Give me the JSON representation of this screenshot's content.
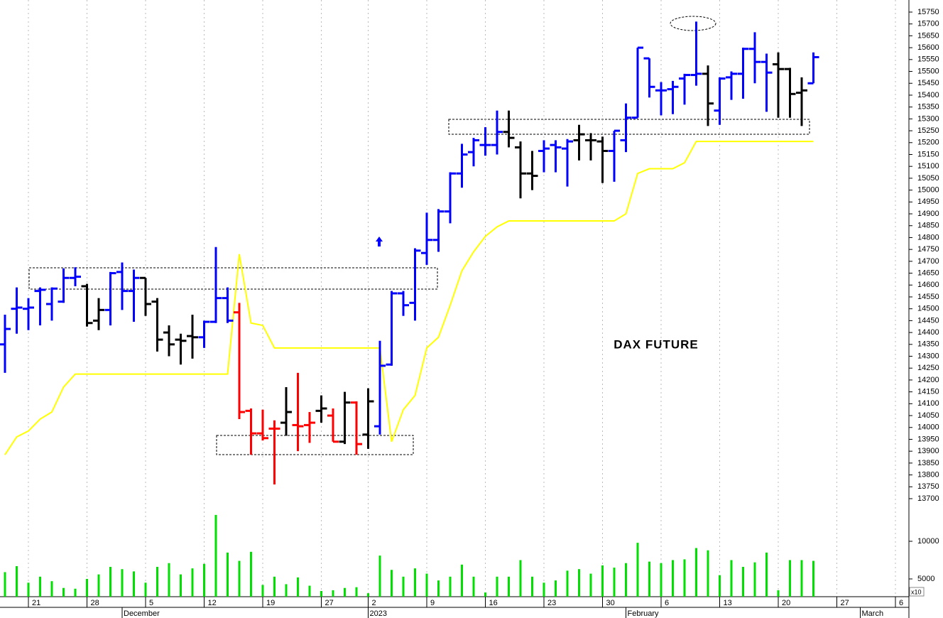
{
  "chart_data": {
    "type": "ohlc",
    "title": "DAX FUTURE",
    "categories": [
      null,
      null,
      "21",
      null,
      null,
      null,
      null,
      "28",
      null,
      null,
      null,
      null,
      "5",
      null,
      null,
      null,
      null,
      "12",
      null,
      null,
      null,
      null,
      "19",
      null,
      null,
      null,
      null,
      "27",
      null,
      null,
      null,
      "2",
      null,
      null,
      null,
      null,
      "9",
      null,
      null,
      null,
      null,
      "16",
      null,
      null,
      null,
      null,
      "23",
      null,
      null,
      null,
      null,
      "30",
      null,
      null,
      null,
      null,
      "6",
      null,
      null,
      null,
      null,
      "13",
      null,
      null,
      null,
      null,
      "20",
      null,
      null,
      null,
      null,
      "27",
      null,
      null,
      null,
      null,
      "6"
    ],
    "months": [
      null,
      null,
      null,
      null,
      null,
      null,
      null,
      null,
      null,
      null,
      "December",
      null,
      null,
      null,
      null,
      null,
      null,
      null,
      null,
      null,
      null,
      null,
      null,
      null,
      null,
      null,
      null,
      null,
      null,
      null,
      null,
      "2023",
      null,
      null,
      null,
      null,
      null,
      null,
      null,
      null,
      null,
      null,
      null,
      null,
      null,
      null,
      null,
      null,
      null,
      null,
      null,
      null,
      null,
      "February",
      null,
      null,
      null,
      null,
      null,
      null,
      null,
      null,
      null,
      null,
      null,
      null,
      null,
      null,
      null,
      null,
      null,
      null,
      null,
      "March",
      null,
      null,
      null
    ],
    "open": [
      14350,
      14500,
      14500,
      14575,
      14520,
      14530,
      14630,
      14595,
      14450,
      14495,
      14655,
      14575,
      14630,
      14530,
      14400,
      14370,
      14385,
      14380,
      14445,
      14545,
      14485,
      14070,
      13975,
      13995,
      14020,
      14010,
      14010,
      14070,
      14050,
      13940,
      14105,
      13970,
      14005,
      14265,
      14565,
      14525,
      14735,
      14790,
      14910,
      15070,
      15160,
      15190,
      15190,
      15245,
      15180,
      15070,
      15165,
      15190,
      15175,
      15210,
      15210,
      15205,
      15165,
      15210,
      15305,
      15555,
      15420,
      15425,
      15470,
      15485,
      15490,
      15335,
      15475,
      15490,
      15595,
      15540,
      15530,
      15510,
      15410,
      15450,
      null,
      null,
      null,
      null,
      null,
      null,
      null
    ],
    "high": [
      14475,
      14590,
      14545,
      14590,
      14590,
      14670,
      14675,
      14605,
      14545,
      14655,
      14695,
      14665,
      14630,
      14545,
      14430,
      14395,
      14475,
      14450,
      14760,
      14590,
      14525,
      14080,
      14075,
      14030,
      14170,
      14230,
      14065,
      14135,
      14080,
      14150,
      14110,
      14165,
      14365,
      14575,
      14575,
      14755,
      14905,
      14920,
      15075,
      15195,
      15220,
      15265,
      15335,
      15335,
      15205,
      15165,
      15210,
      15210,
      15215,
      15275,
      15240,
      15225,
      15250,
      15365,
      15600,
      15555,
      15455,
      15460,
      15490,
      15710,
      15525,
      15475,
      15500,
      15600,
      15665,
      15575,
      15580,
      15515,
      15475,
      15580,
      null,
      null,
      null,
      null,
      null,
      null,
      null
    ],
    "low": [
      14230,
      14395,
      14410,
      14430,
      14450,
      14525,
      14595,
      14425,
      14410,
      14430,
      14495,
      14445,
      14470,
      14320,
      14300,
      14265,
      14290,
      14335,
      14440,
      14440,
      14035,
      13885,
      13945,
      13760,
      13965,
      13900,
      13935,
      14020,
      13940,
      13930,
      13885,
      13910,
      13970,
      14260,
      14470,
      14450,
      14685,
      14740,
      14860,
      15010,
      15100,
      15145,
      15150,
      15180,
      14965,
      15000,
      15075,
      15075,
      15015,
      15125,
      15125,
      15030,
      15035,
      15160,
      15305,
      15390,
      15315,
      15320,
      15360,
      15440,
      15270,
      15275,
      15380,
      15385,
      15450,
      15330,
      15305,
      15305,
      15270,
      15450,
      null,
      null,
      null,
      null,
      null,
      null,
      null
    ],
    "close": [
      14415,
      14505,
      14505,
      14580,
      14585,
      14630,
      14635,
      14440,
      14495,
      14650,
      14575,
      14630,
      14520,
      14370,
      14350,
      14365,
      14380,
      14445,
      14545,
      14450,
      14065,
      13975,
      13955,
      13995,
      14065,
      14005,
      14020,
      14080,
      13940,
      14105,
      13930,
      14110,
      14260,
      14565,
      14515,
      14745,
      14790,
      14910,
      15070,
      15150,
      15210,
      15190,
      15245,
      15220,
      15070,
      15060,
      15175,
      15180,
      15205,
      15235,
      15210,
      15165,
      15250,
      15305,
      15600,
      15435,
      15420,
      15435,
      15485,
      15490,
      15365,
      15470,
      15490,
      15595,
      15540,
      15495,
      15510,
      15405,
      15420,
      15560,
      null,
      null,
      null,
      null,
      null,
      null,
      null
    ],
    "colors": [
      "#0000ff",
      "#0000ff",
      "#0000ff",
      "#0000ff",
      "#0000ff",
      "#0000ff",
      "#0000ff",
      "#000000",
      "#000000",
      "#0000ff",
      "#0000ff",
      "#0000ff",
      "#000000",
      "#000000",
      "#000000",
      "#000000",
      "#000000",
      "#0000ff",
      "#0000ff",
      "#0000ff",
      "#ff0000",
      "#ff0000",
      "#ff0000",
      "#ff0000",
      "#000000",
      "#ff0000",
      "#ff0000",
      "#000000",
      "#ff0000",
      "#000000",
      "#ff0000",
      "#000000",
      "#0000ff",
      "#0000ff",
      "#0000ff",
      "#0000ff",
      "#0000ff",
      "#0000ff",
      "#0000ff",
      "#0000ff",
      "#0000ff",
      "#0000ff",
      "#0000ff",
      "#000000",
      "#000000",
      "#000000",
      "#0000ff",
      "#0000ff",
      "#0000ff",
      "#000000",
      "#000000",
      "#000000",
      "#0000ff",
      "#0000ff",
      "#0000ff",
      "#0000ff",
      "#0000ff",
      "#0000ff",
      "#0000ff",
      "#0000ff",
      "#000000",
      "#0000ff",
      "#0000ff",
      "#0000ff",
      "#0000ff",
      "#0000ff",
      "#000000",
      "#000000",
      "#000000",
      "#0000ff",
      null,
      null,
      null,
      null,
      null,
      null,
      null
    ],
    "stop_line": {
      "color": "#ffff00",
      "values": [
        13885,
        13960,
        13985,
        14035,
        14065,
        14170,
        14225,
        14225,
        14225,
        14225,
        14225,
        14225,
        14225,
        14225,
        14225,
        14225,
        14225,
        14225,
        14225,
        14225,
        14730,
        14440,
        14430,
        14335,
        14335,
        14335,
        14335,
        14335,
        14335,
        14335,
        14335,
        14335,
        14335,
        13940,
        14075,
        14135,
        14335,
        14380,
        14515,
        14660,
        14740,
        14805,
        14845,
        14870,
        14870,
        14870,
        14870,
        14870,
        14870,
        14870,
        14870,
        14870,
        14870,
        14900,
        15070,
        15090,
        15090,
        15090,
        15115,
        15205,
        15205,
        15205,
        15205,
        15205,
        15205,
        15205,
        15205,
        15205,
        15205,
        15205,
        null,
        null,
        null,
        null,
        null,
        null,
        null
      ]
    },
    "ylim": [
      13700,
      15750
    ],
    "yticks": [
      13700,
      13750,
      13800,
      13850,
      13900,
      13950,
      14000,
      14050,
      14100,
      14150,
      14200,
      14250,
      14300,
      14350,
      14400,
      14450,
      14500,
      14550,
      14600,
      14650,
      14700,
      14750,
      14800,
      14850,
      14900,
      14950,
      15000,
      15050,
      15100,
      15150,
      15200,
      15250,
      15300,
      15350,
      15400,
      15450,
      15500,
      15550,
      15600,
      15650,
      15700,
      15750
    ],
    "grid": true,
    "volume": {
      "color": "#00e000",
      "label": "x10",
      "ylim": [
        2640,
        14150
      ],
      "yticks": [
        5000,
        10000
      ],
      "values": [
        5900,
        6700,
        4500,
        5300,
        4700,
        3800,
        3700,
        5000,
        5600,
        6600,
        6300,
        6000,
        4500,
        6600,
        7100,
        5600,
        6400,
        7000,
        13500,
        8500,
        7400,
        8600,
        4200,
        5300,
        4300,
        5200,
        4100,
        3400,
        3500,
        3800,
        3900,
        3100,
        8100,
        6200,
        5300,
        6400,
        5700,
        4800,
        5300,
        6900,
        5300,
        3200,
        5300,
        5300,
        7500,
        5300,
        4500,
        4800,
        6100,
        6300,
        5700,
        6800,
        6500,
        7100,
        9800,
        7300,
        7100,
        7500,
        7600,
        9100,
        8800,
        5500,
        7500,
        6600,
        7200,
        8500,
        3500,
        7500,
        7500,
        7400,
        null,
        null,
        null,
        null,
        null,
        null,
        null
      ]
    }
  }
}
